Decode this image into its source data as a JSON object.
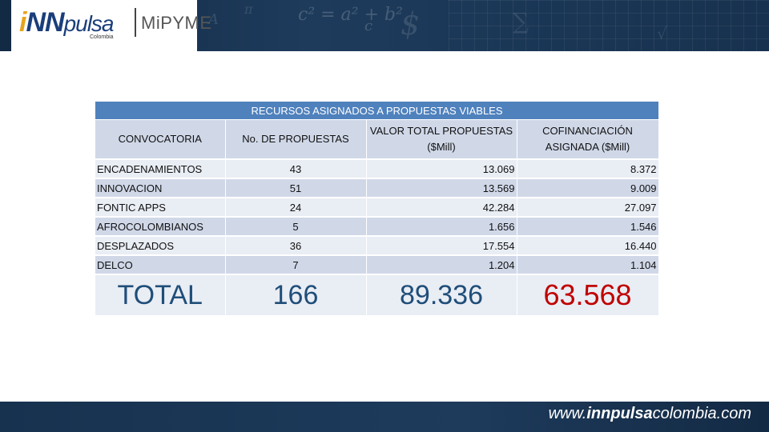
{
  "header": {
    "logo_brand_i": "i",
    "logo_brand_nn": "NN",
    "logo_brand_pulsa": "pulsa",
    "logo_sub": "Colombia",
    "logo_product": "MiPYME"
  },
  "table": {
    "title": "RECURSOS ASIGNADOS A PROPUESTAS VIABLES",
    "columns": [
      "CONVOCATORIA",
      "No. DE PROPUESTAS",
      "VALOR TOTAL PROPUESTAS ($Mill)",
      "COFINANCIACIÓN ASIGNADA ($Mill)"
    ],
    "rows": [
      {
        "name": "ENCADENAMIENTOS",
        "count": "43",
        "total": "13.069",
        "cofin": "8.372"
      },
      {
        "name": "INNOVACION",
        "count": "51",
        "total": "13.569",
        "cofin": "9.009"
      },
      {
        "name": "FONTIC APPS",
        "count": "24",
        "total": "42.284",
        "cofin": "27.097"
      },
      {
        "name": "AFROCOLOMBIANOS",
        "count": "5",
        "total": "1.656",
        "cofin": "1.546"
      },
      {
        "name": "DESPLAZADOS",
        "count": "36",
        "total": "17.554",
        "cofin": "16.440"
      },
      {
        "name": "DELCO",
        "count": "7",
        "total": "1.204",
        "cofin": "1.104"
      }
    ],
    "total": {
      "label": "TOTAL",
      "count": "166",
      "total": "89.336",
      "cofin": "63.568"
    }
  },
  "footer": {
    "url_prefix": "www.",
    "url_bold": "innpulsa",
    "url_suffix": "colombia.com"
  },
  "colors": {
    "header_bg": "#1e3b5c",
    "table_title_bg": "#4f81bd",
    "total_highlight": "#c00000"
  }
}
